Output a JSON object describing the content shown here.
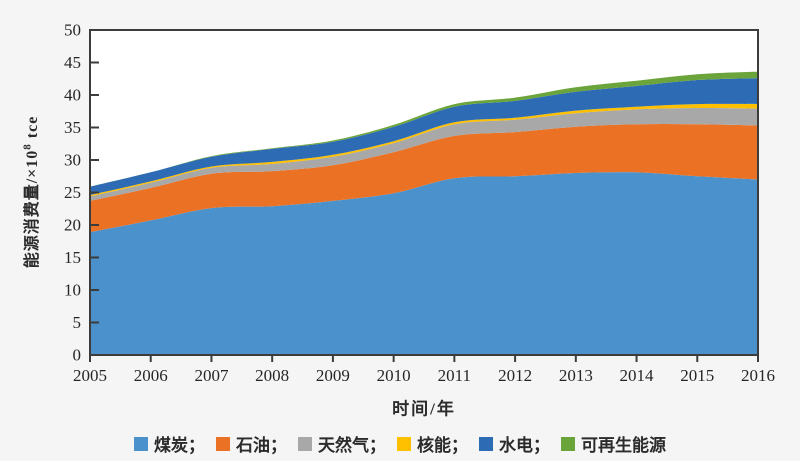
{
  "figure": {
    "background": "#f5f5f6",
    "plot_background": "#ffffff",
    "axis_color": "#3c3c3c",
    "text_color": "#262626"
  },
  "labels": {
    "xlabel": "时间/年",
    "ylabel": "能源消费量/×10⁸ tce",
    "ylabel_prefix": "能源消费量/×10",
    "ylabel_sup": "8",
    "ylabel_unit": " tce"
  },
  "chart_data": {
    "type": "area",
    "stacked": true,
    "smooth": true,
    "title": "",
    "xlabel": "时间/年",
    "ylabel": "能源消费量/×10⁸ tce",
    "x": [
      2005,
      2006,
      2007,
      2008,
      2009,
      2010,
      2011,
      2012,
      2013,
      2014,
      2015,
      2016
    ],
    "ylim": [
      0,
      50
    ],
    "ytick_step": 5,
    "grid": false,
    "legend_position": "bottom",
    "legend_separator": "；",
    "series": [
      {
        "key": "coal",
        "name": "煤炭",
        "legend_label": "煤炭；",
        "color": "#4B92CC",
        "values": [
          18.9,
          20.7,
          22.6,
          22.9,
          23.7,
          24.9,
          27.2,
          27.5,
          28.0,
          28.1,
          27.5,
          27.0
        ]
      },
      {
        "key": "oil",
        "name": "石油",
        "legend_label": "石油；",
        "color": "#EB7125",
        "values": [
          4.8,
          5.0,
          5.3,
          5.4,
          5.5,
          6.3,
          6.5,
          6.8,
          7.1,
          7.4,
          8.0,
          8.3
        ]
      },
      {
        "key": "natural-gas",
        "name": "天然气",
        "legend_label": "天然气；",
        "color": "#A8A8A8",
        "values": [
          0.7,
          0.8,
          0.9,
          1.1,
          1.3,
          1.4,
          1.8,
          1.9,
          2.1,
          2.3,
          2.5,
          2.6
        ]
      },
      {
        "key": "nuclear",
        "name": "核能",
        "legend_label": "核能；",
        "color": "#FFC000",
        "values": [
          0.2,
          0.2,
          0.2,
          0.3,
          0.3,
          0.3,
          0.3,
          0.3,
          0.4,
          0.4,
          0.6,
          0.7
        ]
      },
      {
        "key": "hydro",
        "name": "水电",
        "legend_label": "水电；",
        "color": "#2D6CB5",
        "values": [
          1.3,
          1.4,
          1.5,
          2.0,
          2.0,
          2.2,
          2.4,
          2.6,
          2.9,
          3.2,
          3.7,
          4.0
        ]
      },
      {
        "key": "renewables",
        "name": "可再生能源",
        "legend_label": "可再生能源",
        "color": "#6BA43B",
        "values": [
          0.0,
          0.0,
          0.1,
          0.1,
          0.2,
          0.3,
          0.4,
          0.5,
          0.7,
          0.8,
          0.9,
          1.0
        ]
      }
    ],
    "totals": [
      25.9,
      28.1,
      30.6,
      31.8,
      33.0,
      35.4,
      38.6,
      39.6,
      41.2,
      42.2,
      43.2,
      43.6
    ]
  }
}
